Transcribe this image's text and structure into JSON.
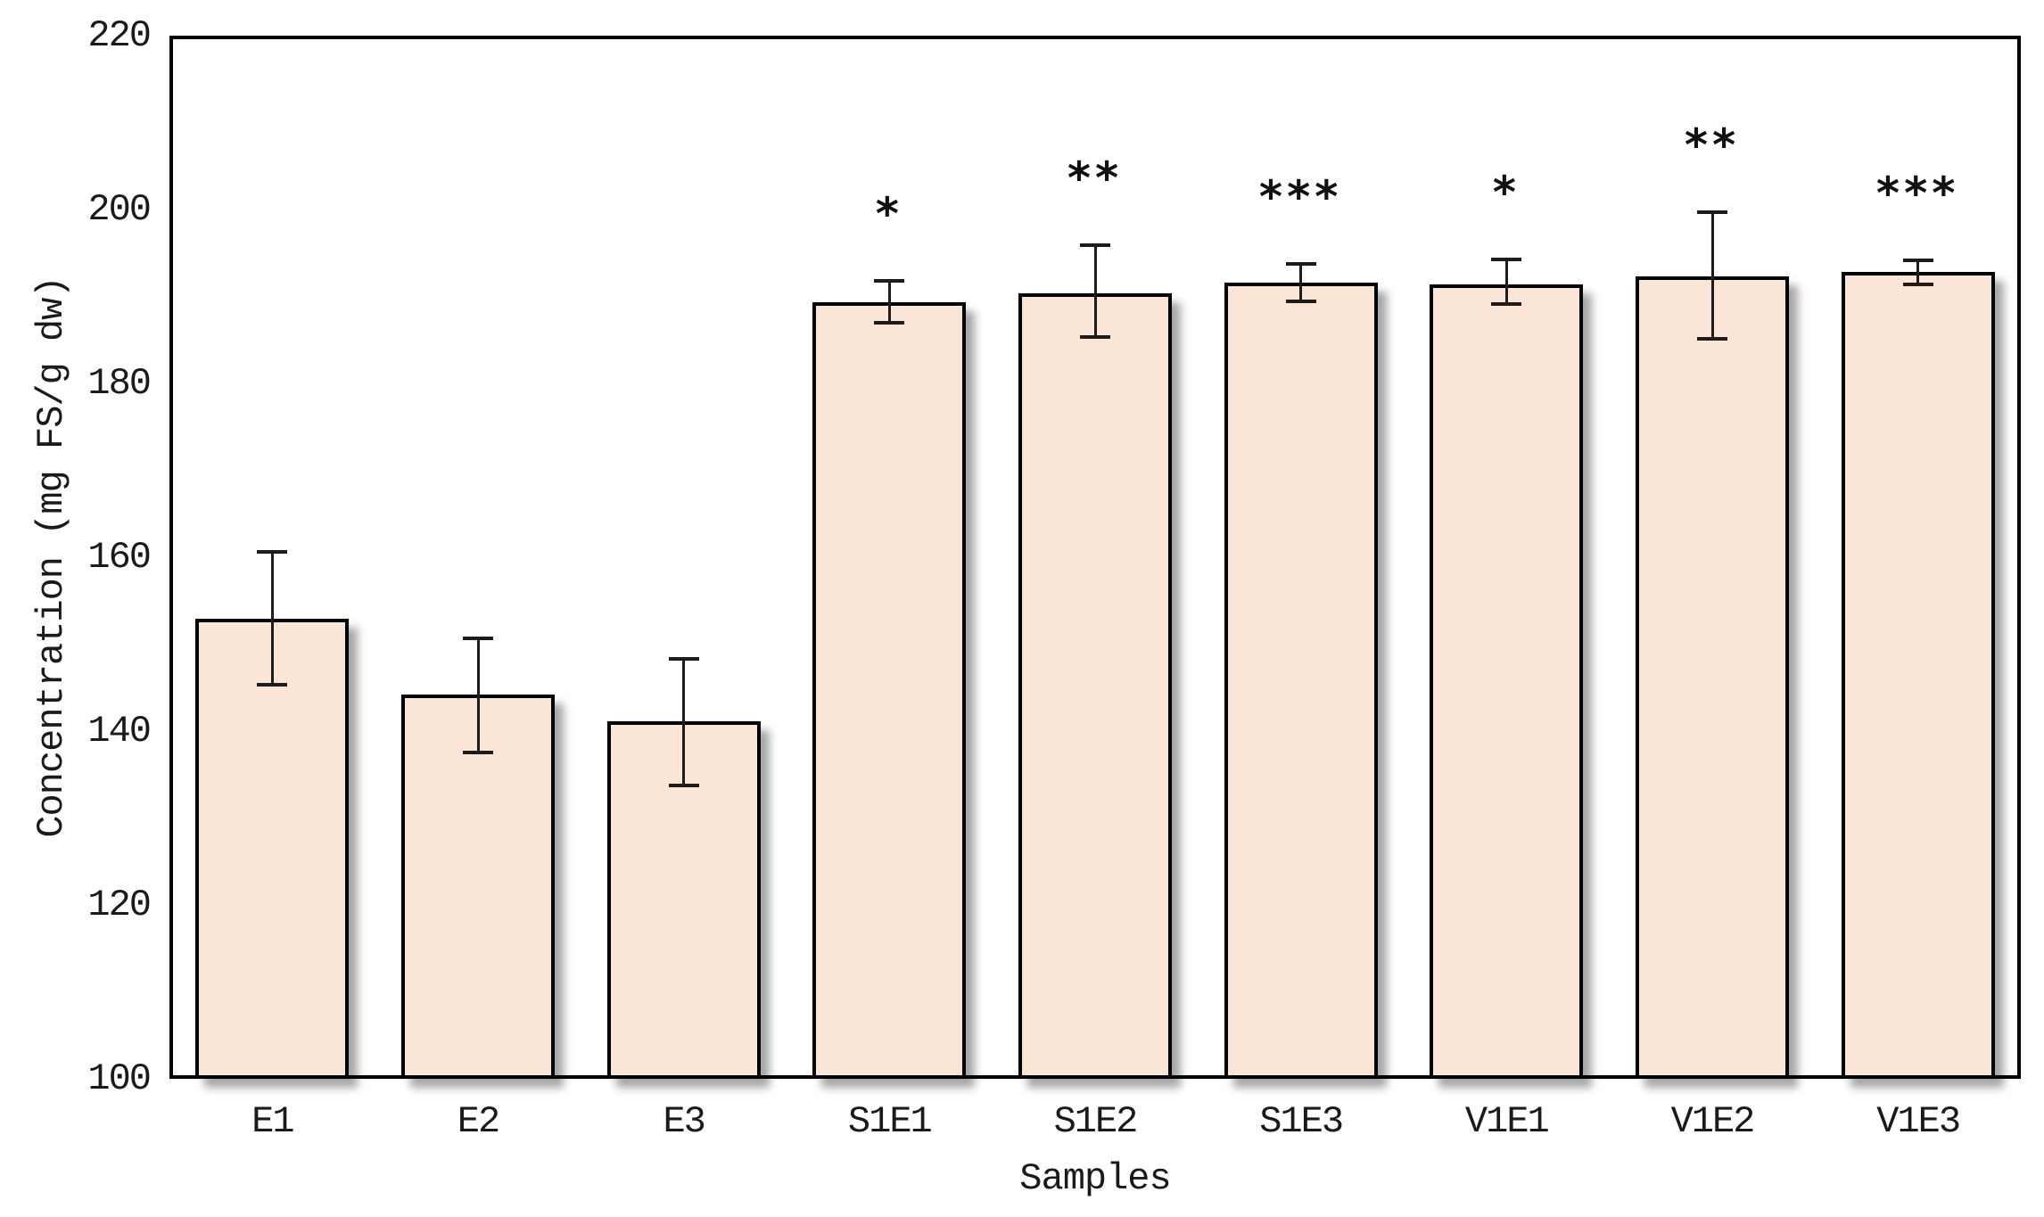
{
  "chart_data": {
    "type": "bar",
    "title": "",
    "xlabel": "Samples",
    "ylabel": "Concentration (mg FS/g dw)",
    "categories": [
      "E1",
      "E2",
      "E3",
      "S1E1",
      "S1E2",
      "S1E3",
      "V1E1",
      "V1E2",
      "V1E3"
    ],
    "values": [
      152.9,
      144.2,
      141.1,
      189.3,
      190.4,
      191.6,
      191.4,
      192.3,
      192.8
    ],
    "error_high": [
      160.6,
      150.7,
      148.3,
      191.8,
      195.9,
      193.7,
      194.3,
      199.7,
      194.2
    ],
    "error_low": [
      145.3,
      137.5,
      133.7,
      187.0,
      185.3,
      189.4,
      189.1,
      185.1,
      191.4
    ],
    "significance": [
      "",
      "",
      "",
      "*",
      "**",
      "***",
      "*",
      "**",
      "***"
    ],
    "ylim": [
      100,
      220
    ],
    "yticks": [
      220,
      200,
      180,
      160,
      140,
      120,
      100
    ],
    "grid": false,
    "legend": null,
    "colors": {
      "bar_fill": "#FBE5D6",
      "bar_border": "#000000",
      "error_bar": "#1c1c1c",
      "text": "#1a1a1a",
      "significance": "#111111"
    }
  }
}
